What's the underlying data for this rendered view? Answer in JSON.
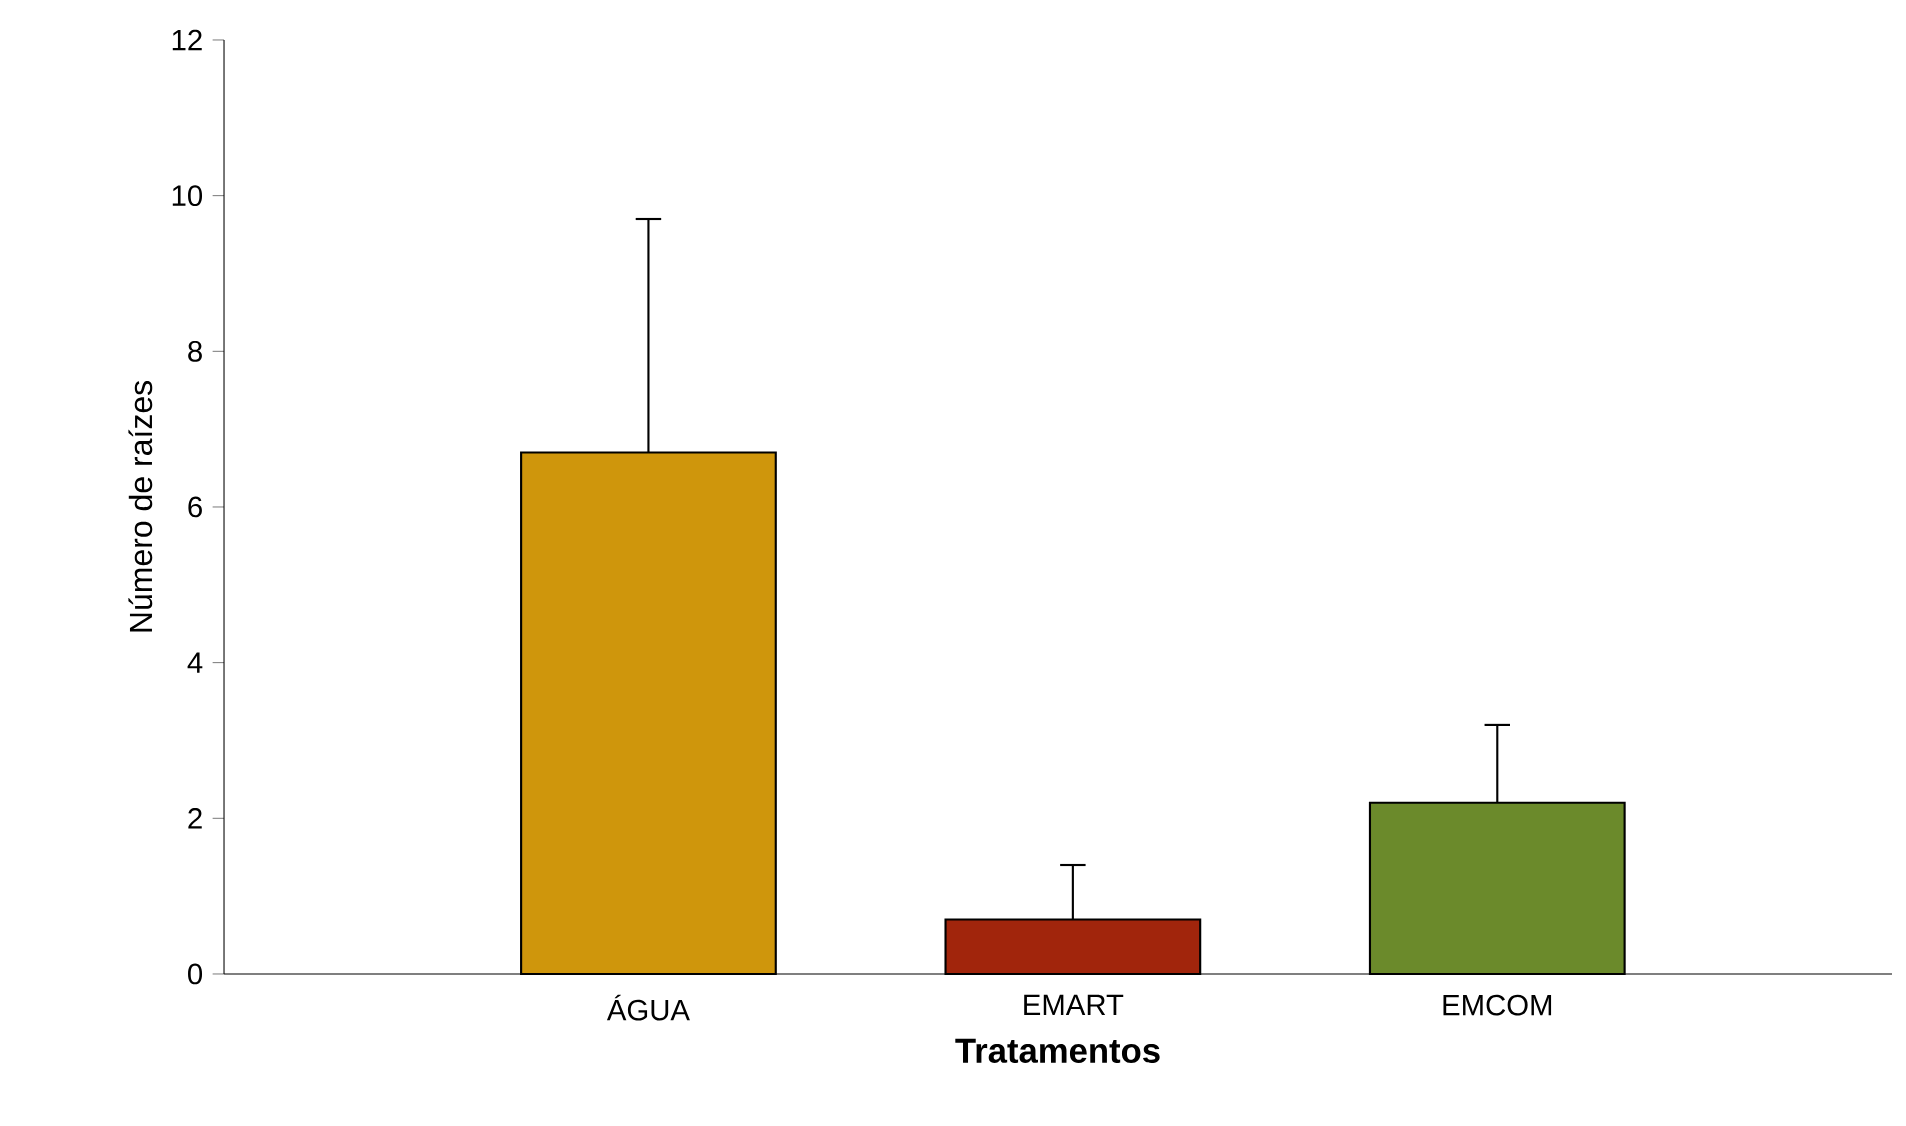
{
  "chart_data": {
    "type": "bar",
    "xlabel": "Tratamentos",
    "ylabel": "Número de raízes",
    "categories": [
      "ÁGUA",
      "EMART",
      "EMCOM"
    ],
    "values": [
      6.7,
      0.7,
      2.2
    ],
    "colors": [
      "#cf960c",
      "#a1250c",
      "#6b8a2b"
    ],
    "errors": [
      [
        6.7,
        9.7
      ],
      [
        0.7,
        1.4
      ],
      [
        2.2,
        3.2
      ]
    ],
    "ylim": [
      0,
      12
    ],
    "yticks": [
      0,
      2,
      4,
      6,
      8,
      10,
      12
    ],
    "grid": false
  }
}
